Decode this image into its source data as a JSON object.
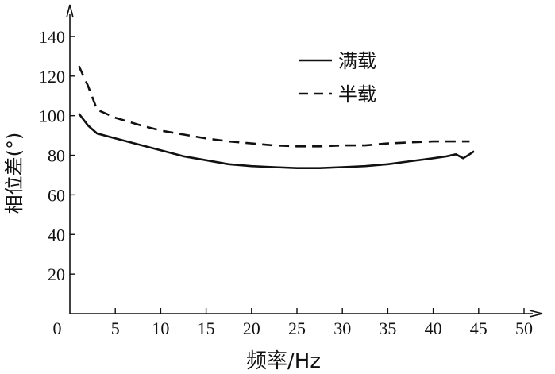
{
  "chart_data": {
    "type": "line",
    "xlabel": "频率/Hz",
    "ylabel": "相位差(°)",
    "xlim": [
      0,
      50
    ],
    "ylim": [
      0,
      150
    ],
    "xticks": [
      0,
      5,
      10,
      15,
      20,
      25,
      30,
      35,
      40,
      45,
      50
    ],
    "yticks": [
      20,
      40,
      60,
      80,
      100,
      120,
      140
    ],
    "xtick_labels": [
      "0",
      "5",
      "10",
      "15",
      "20",
      "25",
      "30",
      "35",
      "40",
      "45",
      "50"
    ],
    "ytick_labels": [
      "20",
      "40",
      "60",
      "80",
      "100",
      "120",
      "140"
    ],
    "grid": false,
    "legend_position": "top-right",
    "series": [
      {
        "name": "满载",
        "style": "solid",
        "color": "#111111",
        "x": [
          1.0,
          2.0,
          3.0,
          5.0,
          7.5,
          10.0,
          12.5,
          15.0,
          17.5,
          20.0,
          22.5,
          25.0,
          27.5,
          30.0,
          32.5,
          35.0,
          37.5,
          40.0,
          41.5,
          42.5,
          43.3,
          44.0,
          44.5
        ],
        "y": [
          101,
          95,
          91,
          88.5,
          85.5,
          82.5,
          79.5,
          77.5,
          75.5,
          74.5,
          74,
          73.5,
          73.5,
          74,
          74.5,
          75.5,
          77,
          78.5,
          79.5,
          80.5,
          78.5,
          80.5,
          82
        ]
      },
      {
        "name": "半载",
        "style": "dashed",
        "color": "#111111",
        "x": [
          1.0,
          2.0,
          3.0,
          5.0,
          7.5,
          10.0,
          12.5,
          15.0,
          17.5,
          20.0,
          22.5,
          25.0,
          27.5,
          30.0,
          32.5,
          35.0,
          37.5,
          40.0,
          42.5,
          44.0
        ],
        "y": [
          125,
          115,
          103,
          99,
          95.5,
          92.5,
          90.5,
          88.5,
          87,
          86,
          85,
          84.5,
          84.5,
          85,
          85,
          86,
          86.5,
          87,
          87,
          87
        ]
      }
    ]
  }
}
